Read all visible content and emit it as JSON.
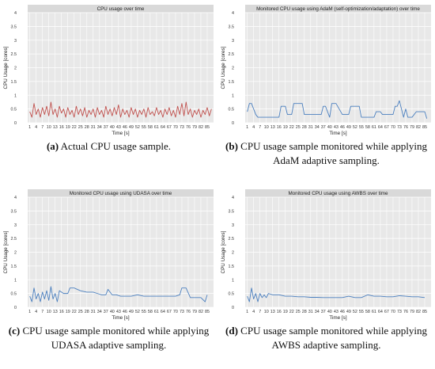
{
  "charts": [
    {
      "caption_label": "(a)",
      "caption_text": "Actual CPU usage sample.",
      "chart_data": {
        "type": "line",
        "title": "CPU usage over time",
        "xlabel": "Time [s]",
        "ylabel": "CPU Usage [cores]",
        "ylim": [
          0,
          4
        ],
        "y_ticks": [
          "0",
          "0.5",
          "1",
          "1.5",
          "2",
          "2.5",
          "3",
          "3.5",
          "4"
        ],
        "x_ticks": [
          "1",
          "4",
          "7",
          "10",
          "13",
          "16",
          "19",
          "22",
          "25",
          "28",
          "31",
          "34",
          "37",
          "40",
          "43",
          "46",
          "49",
          "52",
          "55",
          "58",
          "61",
          "64",
          "67",
          "70",
          "73",
          "76",
          "79",
          "82",
          "85"
        ],
        "grid": true,
        "series": [
          {
            "color": "#c0504d",
            "x": [
              1,
              2,
              3,
              4,
              5,
              6,
              7,
              8,
              9,
              10,
              11,
              12,
              13,
              14,
              15,
              16,
              17,
              18,
              19,
              20,
              21,
              22,
              23,
              24,
              25,
              26,
              27,
              28,
              29,
              30,
              31,
              32,
              33,
              34,
              35,
              36,
              37,
              38,
              39,
              40,
              41,
              42,
              43,
              44,
              45,
              46,
              47,
              48,
              49,
              50,
              51,
              52,
              53,
              54,
              55,
              56,
              57,
              58,
              59,
              60,
              61,
              62,
              63,
              64,
              65,
              66,
              67,
              68,
              69,
              70,
              71,
              72,
              73,
              74,
              75,
              76,
              77,
              78,
              79,
              80,
              81,
              82,
              83,
              84,
              85,
              86,
              87
            ],
            "values": [
              0.4,
              0.2,
              0.7,
              0.3,
              0.5,
              0.2,
              0.55,
              0.3,
              0.6,
              0.25,
              0.75,
              0.3,
              0.5,
              0.2,
              0.6,
              0.35,
              0.5,
              0.2,
              0.55,
              0.3,
              0.45,
              0.2,
              0.6,
              0.3,
              0.5,
              0.25,
              0.55,
              0.2,
              0.45,
              0.3,
              0.5,
              0.2,
              0.55,
              0.3,
              0.45,
              0.2,
              0.6,
              0.3,
              0.5,
              0.25,
              0.55,
              0.3,
              0.65,
              0.2,
              0.5,
              0.3,
              0.45,
              0.2,
              0.55,
              0.3,
              0.5,
              0.2,
              0.45,
              0.3,
              0.5,
              0.2,
              0.55,
              0.3,
              0.4,
              0.25,
              0.55,
              0.3,
              0.45,
              0.2,
              0.5,
              0.3,
              0.55,
              0.25,
              0.45,
              0.2,
              0.6,
              0.3,
              0.7,
              0.25,
              0.75,
              0.3,
              0.5,
              0.2,
              0.45,
              0.3,
              0.5,
              0.2,
              0.45,
              0.3,
              0.55,
              0.25,
              0.5
            ]
          }
        ]
      }
    },
    {
      "caption_label": "(b)",
      "caption_text": "CPU usage sample monitored while applying AdaM adaptive sampling.",
      "chart_data": {
        "type": "line",
        "title": "Monitored CPU usage using AdaM (self-optimization/adaptation) over time",
        "xlabel": "Time [s]",
        "ylabel": "CPU Usage [cores]",
        "ylim": [
          0,
          4
        ],
        "y_ticks": [
          "0",
          "0.5",
          "1",
          "1.5",
          "2",
          "2.5",
          "3",
          "3.5",
          "4"
        ],
        "x_ticks": [
          "1",
          "4",
          "7",
          "10",
          "13",
          "16",
          "19",
          "22",
          "25",
          "28",
          "31",
          "34",
          "37",
          "40",
          "43",
          "46",
          "49",
          "52",
          "55",
          "58",
          "61",
          "64",
          "67",
          "70",
          "73",
          "76",
          "79",
          "82",
          "85"
        ],
        "grid": true,
        "series": [
          {
            "color": "#4a7fbf",
            "x": [
              1,
              2,
              3,
              5,
              6,
              8,
              16,
              17,
              19,
              20,
              22,
              23,
              27,
              28,
              30,
              31,
              36,
              37,
              38,
              40,
              41,
              43,
              46,
              47,
              49,
              50,
              54,
              55,
              56,
              58,
              61,
              62,
              64,
              65,
              67,
              70,
              71,
              72,
              73,
              75,
              76,
              77,
              79,
              81,
              82,
              85,
              86
            ],
            "values": [
              0.4,
              0.7,
              0.7,
              0.3,
              0.2,
              0.2,
              0.2,
              0.6,
              0.6,
              0.3,
              0.3,
              0.7,
              0.7,
              0.3,
              0.3,
              0.3,
              0.3,
              0.6,
              0.6,
              0.2,
              0.7,
              0.7,
              0.3,
              0.3,
              0.3,
              0.6,
              0.6,
              0.2,
              0.2,
              0.2,
              0.2,
              0.4,
              0.4,
              0.3,
              0.3,
              0.3,
              0.6,
              0.6,
              0.8,
              0.2,
              0.5,
              0.2,
              0.2,
              0.4,
              0.4,
              0.4,
              0.15
            ]
          }
        ]
      }
    },
    {
      "caption_label": "(c)",
      "caption_text": "CPU usage sample monitored while applying UDASA adaptive sampling.",
      "chart_data": {
        "type": "line",
        "title": "Monitored CPU usage using UDASA over time",
        "xlabel": "Time [s]",
        "ylabel": "CPU Usage [cores]",
        "ylim": [
          0,
          4
        ],
        "y_ticks": [
          "0",
          "0.5",
          "1",
          "1.5",
          "2",
          "2.5",
          "3",
          "3.5",
          "4"
        ],
        "x_ticks": [
          "1",
          "4",
          "7",
          "10",
          "13",
          "16",
          "19",
          "22",
          "25",
          "28",
          "31",
          "34",
          "37",
          "40",
          "43",
          "46",
          "49",
          "52",
          "55",
          "58",
          "61",
          "64",
          "67",
          "70",
          "73",
          "76",
          "79",
          "82",
          "85"
        ],
        "grid": true,
        "series": [
          {
            "color": "#4a7fbf",
            "x": [
              1,
              2,
              3,
              4,
              5,
              6,
              7,
              8,
              9,
              10,
              11,
              12,
              13,
              14,
              15,
              17,
              19,
              20,
              22,
              25,
              28,
              31,
              33,
              35,
              37,
              38,
              40,
              42,
              44,
              47,
              49,
              52,
              55,
              58,
              61,
              64,
              67,
              70,
              72,
              73,
              75,
              77,
              79,
              80,
              82,
              84,
              85
            ],
            "values": [
              0.4,
              0.2,
              0.7,
              0.3,
              0.5,
              0.2,
              0.55,
              0.3,
              0.6,
              0.25,
              0.75,
              0.3,
              0.5,
              0.2,
              0.6,
              0.5,
              0.5,
              0.7,
              0.7,
              0.6,
              0.55,
              0.55,
              0.5,
              0.45,
              0.45,
              0.65,
              0.45,
              0.45,
              0.4,
              0.4,
              0.4,
              0.45,
              0.4,
              0.4,
              0.4,
              0.4,
              0.4,
              0.4,
              0.45,
              0.7,
              0.7,
              0.35,
              0.35,
              0.35,
              0.35,
              0.2,
              0.45
            ]
          }
        ]
      }
    },
    {
      "caption_label": "(d)",
      "caption_text": "CPU usage sample monitored while applying AWBS adaptive sampling.",
      "chart_data": {
        "type": "line",
        "title": "Monitored CPU usage using AWBS over time",
        "xlabel": "Time [s]",
        "ylabel": "CPU Usage [cores]",
        "ylim": [
          0,
          4
        ],
        "y_ticks": [
          "0",
          "0.5",
          "1",
          "1.5",
          "2",
          "2.5",
          "3",
          "3.5",
          "4"
        ],
        "x_ticks": [
          "1",
          "4",
          "7",
          "10",
          "13",
          "16",
          "19",
          "22",
          "25",
          "28",
          "31",
          "34",
          "37",
          "40",
          "43",
          "46",
          "49",
          "52",
          "55",
          "58",
          "61",
          "64",
          "67",
          "70",
          "73",
          "76",
          "79",
          "82",
          "85"
        ],
        "grid": true,
        "series": [
          {
            "color": "#4a7fbf",
            "x": [
              1,
              2,
              3,
              4,
              5,
              6,
              7,
              8,
              9,
              10,
              11,
              13,
              16,
              19,
              22,
              25,
              28,
              31,
              34,
              37,
              40,
              43,
              46,
              49,
              52,
              55,
              58,
              61,
              64,
              67,
              70,
              73,
              76,
              79,
              82,
              85
            ],
            "values": [
              0.4,
              0.2,
              0.7,
              0.3,
              0.5,
              0.2,
              0.5,
              0.35,
              0.45,
              0.35,
              0.5,
              0.45,
              0.45,
              0.4,
              0.4,
              0.38,
              0.38,
              0.36,
              0.36,
              0.35,
              0.35,
              0.35,
              0.35,
              0.4,
              0.35,
              0.35,
              0.45,
              0.4,
              0.4,
              0.38,
              0.38,
              0.42,
              0.4,
              0.38,
              0.38,
              0.35
            ]
          }
        ]
      }
    }
  ]
}
